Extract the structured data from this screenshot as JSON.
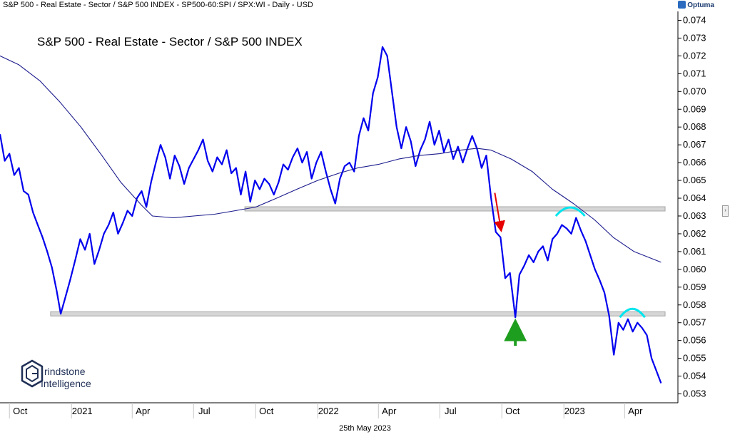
{
  "header": {
    "title": "S&P 500 - Real Estate - Sector / S&P 500 INDEX - SP500-60:SPI / SPX:WI - Daily - USD",
    "brand": "Optuma"
  },
  "footer": {
    "date": "25th May 2023"
  },
  "logo": {
    "line1": "rindstone",
    "line2": "Intelligence"
  },
  "colors": {
    "price": "#0000ee",
    "moving_average": "#1a1a8c",
    "support_band": "#d6d6d6",
    "arc": "#00e5ee",
    "arrow_down": "#e60000",
    "arrow_up": "#1e9e1e"
  },
  "chart_data": {
    "type": "line",
    "title": "S&P 500 - Real Estate - Sector / S&P 500 INDEX",
    "xlabel": "",
    "ylabel": "",
    "ylim": [
      0.0525,
      0.0745
    ],
    "xlim": [
      "2020-09-17",
      "2023-06-19"
    ],
    "x_ticks": [
      {
        "date": "2020-10-01",
        "label": "Oct"
      },
      {
        "date": "2021-01-01",
        "label": "2021"
      },
      {
        "date": "2021-04-01",
        "label": "Apr"
      },
      {
        "date": "2021-07-01",
        "label": "Jul"
      },
      {
        "date": "2021-10-01",
        "label": "Oct"
      },
      {
        "date": "2022-01-01",
        "label": "2022"
      },
      {
        "date": "2022-04-01",
        "label": "Apr"
      },
      {
        "date": "2022-07-01",
        "label": "Jul"
      },
      {
        "date": "2022-10-01",
        "label": "Oct"
      },
      {
        "date": "2023-01-01",
        "label": "2023"
      },
      {
        "date": "2023-04-01",
        "label": "Apr"
      }
    ],
    "y_ticks": [
      "0.053",
      "0.054",
      "0.055",
      "0.056",
      "0.057",
      "0.058",
      "0.059",
      "0.060",
      "0.061",
      "0.062",
      "0.063",
      "0.064",
      "0.065",
      "0.066",
      "0.067",
      "0.068",
      "0.069",
      "0.070",
      "0.071",
      "0.072",
      "0.073",
      "0.074"
    ],
    "series": [
      {
        "name": "",
        "points": [
          [
            "2020-09-17",
            0.0676
          ],
          [
            "2020-09-24",
            0.0661
          ],
          [
            "2020-10-01",
            0.0665
          ],
          [
            "2020-10-08",
            0.0653
          ],
          [
            "2020-10-15",
            0.0657
          ],
          [
            "2020-10-22",
            0.0644
          ],
          [
            "2020-10-29",
            0.0642
          ],
          [
            "2020-11-05",
            0.0632
          ],
          [
            "2020-11-12",
            0.0625
          ],
          [
            "2020-11-19",
            0.0618
          ],
          [
            "2020-11-26",
            0.061
          ],
          [
            "2020-12-03",
            0.0601
          ],
          [
            "2020-12-10",
            0.0588
          ],
          [
            "2020-12-16",
            0.0575
          ],
          [
            "2020-12-22",
            0.0583
          ],
          [
            "2020-12-30",
            0.0594
          ],
          [
            "2021-01-07",
            0.0606
          ],
          [
            "2021-01-14",
            0.0617
          ],
          [
            "2021-01-21",
            0.0611
          ],
          [
            "2021-01-28",
            0.062
          ],
          [
            "2021-02-04",
            0.0603
          ],
          [
            "2021-02-11",
            0.0611
          ],
          [
            "2021-02-18",
            0.062
          ],
          [
            "2021-02-25",
            0.0625
          ],
          [
            "2021-03-04",
            0.0632
          ],
          [
            "2021-03-11",
            0.062
          ],
          [
            "2021-03-18",
            0.0626
          ],
          [
            "2021-03-25",
            0.0633
          ],
          [
            "2021-04-01",
            0.063
          ],
          [
            "2021-04-08",
            0.064
          ],
          [
            "2021-04-15",
            0.0644
          ],
          [
            "2021-04-22",
            0.0635
          ],
          [
            "2021-04-29",
            0.0649
          ],
          [
            "2021-05-06",
            0.066
          ],
          [
            "2021-05-13",
            0.067
          ],
          [
            "2021-05-20",
            0.0663
          ],
          [
            "2021-05-27",
            0.0651
          ],
          [
            "2021-06-03",
            0.0664
          ],
          [
            "2021-06-10",
            0.0658
          ],
          [
            "2021-06-17",
            0.0648
          ],
          [
            "2021-06-24",
            0.0657
          ],
          [
            "2021-07-01",
            0.0662
          ],
          [
            "2021-07-08",
            0.0667
          ],
          [
            "2021-07-15",
            0.0673
          ],
          [
            "2021-07-22",
            0.0661
          ],
          [
            "2021-07-29",
            0.0655
          ],
          [
            "2021-08-05",
            0.0663
          ],
          [
            "2021-08-12",
            0.0659
          ],
          [
            "2021-08-19",
            0.0667
          ],
          [
            "2021-08-26",
            0.0654
          ],
          [
            "2021-09-02",
            0.0657
          ],
          [
            "2021-09-09",
            0.0642
          ],
          [
            "2021-09-16",
            0.0655
          ],
          [
            "2021-09-23",
            0.0638
          ],
          [
            "2021-09-30",
            0.065
          ],
          [
            "2021-10-07",
            0.0645
          ],
          [
            "2021-10-14",
            0.0651
          ],
          [
            "2021-10-21",
            0.0648
          ],
          [
            "2021-10-28",
            0.0642
          ],
          [
            "2021-11-04",
            0.0649
          ],
          [
            "2021-11-11",
            0.0659
          ],
          [
            "2021-11-18",
            0.0656
          ],
          [
            "2021-11-25",
            0.0663
          ],
          [
            "2021-12-02",
            0.0668
          ],
          [
            "2021-12-09",
            0.066
          ],
          [
            "2021-12-16",
            0.0666
          ],
          [
            "2021-12-23",
            0.0651
          ],
          [
            "2021-12-30",
            0.066
          ],
          [
            "2022-01-06",
            0.0666
          ],
          [
            "2022-01-13",
            0.0655
          ],
          [
            "2022-01-20",
            0.0645
          ],
          [
            "2022-01-27",
            0.0637
          ],
          [
            "2022-02-03",
            0.0651
          ],
          [
            "2022-02-10",
            0.0658
          ],
          [
            "2022-02-17",
            0.066
          ],
          [
            "2022-02-24",
            0.0655
          ],
          [
            "2022-03-03",
            0.0675
          ],
          [
            "2022-03-10",
            0.0685
          ],
          [
            "2022-03-17",
            0.0678
          ],
          [
            "2022-03-24",
            0.0699
          ],
          [
            "2022-03-31",
            0.0708
          ],
          [
            "2022-04-07",
            0.0725
          ],
          [
            "2022-04-14",
            0.072
          ],
          [
            "2022-04-21",
            0.07
          ],
          [
            "2022-04-28",
            0.068
          ],
          [
            "2022-05-05",
            0.0668
          ],
          [
            "2022-05-12",
            0.068
          ],
          [
            "2022-05-19",
            0.0672
          ],
          [
            "2022-05-26",
            0.0658
          ],
          [
            "2022-06-02",
            0.0667
          ],
          [
            "2022-06-09",
            0.0673
          ],
          [
            "2022-06-16",
            0.0683
          ],
          [
            "2022-06-23",
            0.067
          ],
          [
            "2022-06-30",
            0.0678
          ],
          [
            "2022-07-07",
            0.0666
          ],
          [
            "2022-07-14",
            0.0673
          ],
          [
            "2022-07-21",
            0.0662
          ],
          [
            "2022-07-28",
            0.0669
          ],
          [
            "2022-08-04",
            0.066
          ],
          [
            "2022-08-11",
            0.0668
          ],
          [
            "2022-08-18",
            0.0675
          ],
          [
            "2022-08-25",
            0.0668
          ],
          [
            "2022-09-01",
            0.0657
          ],
          [
            "2022-09-08",
            0.0664
          ],
          [
            "2022-09-15",
            0.064
          ],
          [
            "2022-09-22",
            0.0621
          ],
          [
            "2022-09-29",
            0.0618
          ],
          [
            "2022-10-06",
            0.0595
          ],
          [
            "2022-10-13",
            0.0598
          ],
          [
            "2022-10-21",
            0.0573
          ],
          [
            "2022-10-27",
            0.0597
          ],
          [
            "2022-11-03",
            0.0602
          ],
          [
            "2022-11-10",
            0.0608
          ],
          [
            "2022-11-17",
            0.0604
          ],
          [
            "2022-11-24",
            0.061
          ],
          [
            "2022-12-01",
            0.0613
          ],
          [
            "2022-12-08",
            0.0605
          ],
          [
            "2022-12-15",
            0.0617
          ],
          [
            "2022-12-22",
            0.062
          ],
          [
            "2022-12-29",
            0.0625
          ],
          [
            "2023-01-05",
            0.0623
          ],
          [
            "2023-01-12",
            0.062
          ],
          [
            "2023-01-19",
            0.0629
          ],
          [
            "2023-01-26",
            0.0622
          ],
          [
            "2023-02-02",
            0.0616
          ],
          [
            "2023-02-09",
            0.0608
          ],
          [
            "2023-02-16",
            0.06
          ],
          [
            "2023-02-23",
            0.0594
          ],
          [
            "2023-03-02",
            0.0587
          ],
          [
            "2023-03-09",
            0.0574
          ],
          [
            "2023-03-16",
            0.0552
          ],
          [
            "2023-03-23",
            0.057
          ],
          [
            "2023-03-30",
            0.0566
          ],
          [
            "2023-04-06",
            0.0572
          ],
          [
            "2023-04-13",
            0.0565
          ],
          [
            "2023-04-20",
            0.057
          ],
          [
            "2023-04-27",
            0.0567
          ],
          [
            "2023-05-04",
            0.0563
          ],
          [
            "2023-05-11",
            0.055
          ],
          [
            "2023-05-18",
            0.0543
          ],
          [
            "2023-05-25",
            0.0536
          ]
        ]
      },
      {
        "name": "",
        "points": [
          [
            "2020-09-17",
            0.072
          ],
          [
            "2020-10-15",
            0.0715
          ],
          [
            "2020-11-15",
            0.0706
          ],
          [
            "2020-12-15",
            0.0694
          ],
          [
            "2021-01-15",
            0.068
          ],
          [
            "2021-02-15",
            0.0664
          ],
          [
            "2021-03-15",
            0.0649
          ],
          [
            "2021-04-15",
            0.0636
          ],
          [
            "2021-05-01",
            0.063
          ],
          [
            "2021-06-01",
            0.0629
          ],
          [
            "2021-07-01",
            0.063
          ],
          [
            "2021-08-01",
            0.0631
          ],
          [
            "2021-09-01",
            0.0633
          ],
          [
            "2021-10-01",
            0.0635
          ],
          [
            "2021-11-01",
            0.064
          ],
          [
            "2021-12-01",
            0.0645
          ],
          [
            "2022-01-01",
            0.065
          ],
          [
            "2022-02-01",
            0.0654
          ],
          [
            "2022-03-01",
            0.0657
          ],
          [
            "2022-04-01",
            0.0659
          ],
          [
            "2022-05-01",
            0.0662
          ],
          [
            "2022-06-01",
            0.0664
          ],
          [
            "2022-07-01",
            0.0665
          ],
          [
            "2022-08-01",
            0.0667
          ],
          [
            "2022-08-25",
            0.0668
          ],
          [
            "2022-09-15",
            0.0667
          ],
          [
            "2022-10-15",
            0.0662
          ],
          [
            "2022-11-15",
            0.0655
          ],
          [
            "2022-12-15",
            0.0645
          ],
          [
            "2023-01-15",
            0.0637
          ],
          [
            "2023-02-15",
            0.0628
          ],
          [
            "2023-03-15",
            0.0618
          ],
          [
            "2023-04-15",
            0.061
          ],
          [
            "2023-05-25",
            0.0604
          ]
        ]
      }
    ],
    "support_bands": [
      {
        "from": "2021-09-15",
        "to": "2023-05-31",
        "value": 0.0634
      },
      {
        "from": "2020-12-01",
        "to": "2023-05-31",
        "value": 0.0575
      }
    ],
    "arcs": [
      {
        "from": "2022-12-20",
        "to": "2023-02-01",
        "value": 0.063
      },
      {
        "from": "2023-03-25",
        "to": "2023-05-01",
        "value": 0.0573
      }
    ],
    "arrows": [
      {
        "date": "2022-09-29",
        "from": 0.0643,
        "to": 0.0624,
        "direction": "down"
      },
      {
        "date": "2022-10-21",
        "from": 0.0557,
        "to": 0.0566,
        "direction": "up"
      }
    ]
  }
}
